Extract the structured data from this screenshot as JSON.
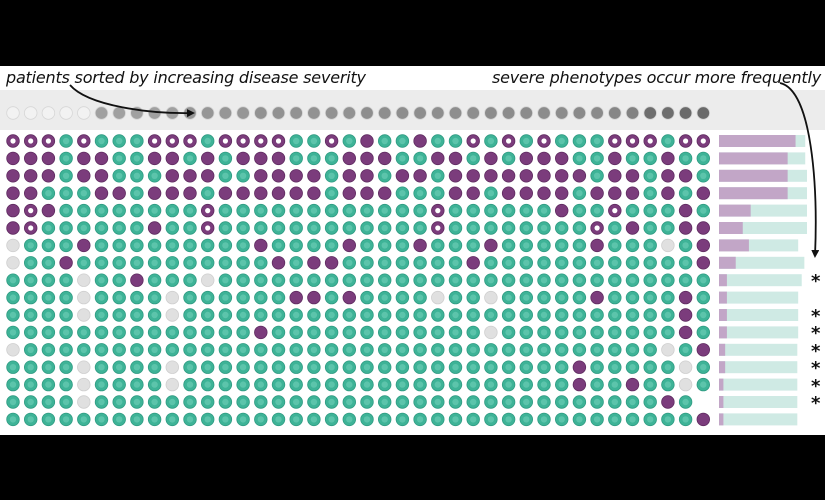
{
  "captions": {
    "left": "patients sorted by increasing disease severity",
    "right": "severe phenotypes occur more frequently"
  },
  "colors": {
    "teal": "#3eb397",
    "teal_light": "#cfeae4",
    "purple": "#7b3c7c",
    "purple_light": "#c2a6c7",
    "missing": "#e0e0e0",
    "background": "#000000",
    "panel": "#ffffff"
  },
  "legend_codes": {
    "t": "teal dot",
    "p": "purple dot",
    "r": "purple ring dot",
    "g": "missing / grey dot"
  },
  "severity_levels": [
    0.04,
    0.04,
    0.04,
    0.04,
    0.04,
    0.45,
    0.45,
    0.45,
    0.45,
    0.45,
    0.5,
    0.5,
    0.5,
    0.5,
    0.52,
    0.52,
    0.52,
    0.52,
    0.52,
    0.52,
    0.54,
    0.54,
    0.54,
    0.54,
    0.54,
    0.54,
    0.54,
    0.55,
    0.55,
    0.55,
    0.55,
    0.55,
    0.56,
    0.56,
    0.58,
    0.6,
    0.7,
    0.7,
    0.72,
    0.72
  ],
  "phenotype_rows": [
    "rrrtrtttrrrtrrrrttrtpttpttrtrtrtttrrrtrr",
    "ppptppttpptptppptttpppttpptptpppttpttptt",
    "ppptpptttpppttpppptpptpptpppppppptpptppt",
    "pptttpptppptpppppptppptttpptpppptppptptp",
    "prpttttttttrttttttttttttrttttttpttrtttpt",
    "prttttttpttrttttttttttttrttttttttrtpttpp",
    "gtttptttttttttpttttptttptttptttttptttgtp",
    "gttptttttttttttptpptttttttpttttttttttttp",
    "ttttgttptttgtttttttttttttttttttttttttttt",
    "ttttgttttgttttttpptpttttgttgtttttpttttpt",
    "ttttgttttgttttttttttttttttttttttttttttpt",
    "ttttttttttttttpttttttttttttgttttttttttpt",
    "gttttttttttttttttttttttttttttttttttttgtp",
    "ttttgttttgttttttttttttttttttttttptttttgt",
    "ttttgttttgttttttttttttttttttttttpttpttgt",
    "ttttgttttttttttttttttttttttttttttttttpt",
    "tttttttttttttttttttttttttttttttttttttttp"
  ],
  "frequency_bars": [
    {
      "purple": 0.87,
      "total": 0.98
    },
    {
      "purple": 0.78,
      "total": 0.98
    },
    {
      "purple": 0.78,
      "total": 1.0
    },
    {
      "purple": 0.78,
      "total": 1.0
    },
    {
      "purple": 0.36,
      "total": 1.0
    },
    {
      "purple": 0.27,
      "total": 1.0
    },
    {
      "purple": 0.34,
      "total": 0.9
    },
    {
      "purple": 0.19,
      "total": 0.97
    },
    {
      "purple": 0.09,
      "total": 0.94
    },
    {
      "purple": 0.09,
      "total": 0.9
    },
    {
      "purple": 0.09,
      "total": 0.9
    },
    {
      "purple": 0.09,
      "total": 0.9
    },
    {
      "purple": 0.07,
      "total": 0.89
    },
    {
      "purple": 0.07,
      "total": 0.89
    },
    {
      "purple": 0.05,
      "total": 0.89
    },
    {
      "purple": 0.05,
      "total": 0.89
    },
    {
      "purple": 0.05,
      "total": 0.89
    }
  ],
  "significant_rows": [
    8,
    10,
    11,
    12,
    13,
    14,
    15
  ],
  "significance_mark": "*"
}
